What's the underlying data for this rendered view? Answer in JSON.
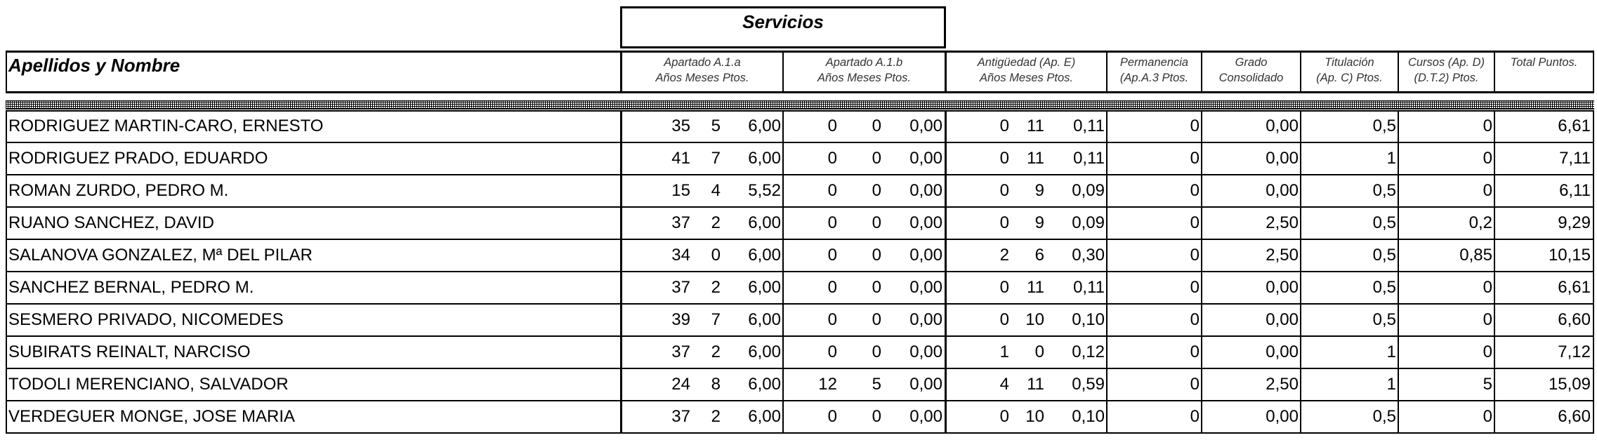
{
  "header": {
    "servicios": "Servicios",
    "name_col": "Apellidos y Nombre",
    "col_a1a": [
      "Apartado A.1.a",
      "Años Meses Ptos."
    ],
    "col_a1b": [
      "Apartado A.1.b",
      "Años Meses Ptos."
    ],
    "col_antig": [
      "Antigüedad (Ap. E)",
      "Años Meses Ptos."
    ],
    "col_perm": [
      "Permanencia",
      "(Ap.A.3 Ptos."
    ],
    "col_grado": [
      "Grado",
      "Consolidado"
    ],
    "col_titul": [
      "Titulación",
      "(Ap. C) Ptos."
    ],
    "col_cursos": [
      "Cursos (Ap. D)",
      "(D.T.2) Ptos."
    ],
    "col_total": [
      "Total Puntos."
    ]
  },
  "rows": [
    {
      "name": "RODRIGUEZ MARTIN-CARO, ERNESTO",
      "a1a": [
        "35",
        "5",
        "6,00"
      ],
      "a1b": [
        "0",
        "0",
        "0,00"
      ],
      "antig": [
        "0",
        "11",
        "0,11"
      ],
      "perm": "0",
      "grado": "0,00",
      "titul": "0,5",
      "cursos": "0",
      "total": "6,61"
    },
    {
      "name": "RODRIGUEZ PRADO, EDUARDO",
      "a1a": [
        "41",
        "7",
        "6,00"
      ],
      "a1b": [
        "0",
        "0",
        "0,00"
      ],
      "antig": [
        "0",
        "11",
        "0,11"
      ],
      "perm": "0",
      "grado": "0,00",
      "titul": "1",
      "cursos": "0",
      "total": "7,11"
    },
    {
      "name": "ROMAN ZURDO, PEDRO M.",
      "a1a": [
        "15",
        "4",
        "5,52"
      ],
      "a1b": [
        "0",
        "0",
        "0,00"
      ],
      "antig": [
        "0",
        "9",
        "0,09"
      ],
      "perm": "0",
      "grado": "0,00",
      "titul": "0,5",
      "cursos": "0",
      "total": "6,11"
    },
    {
      "name": "RUANO SANCHEZ, DAVID",
      "a1a": [
        "37",
        "2",
        "6,00"
      ],
      "a1b": [
        "0",
        "0",
        "0,00"
      ],
      "antig": [
        "0",
        "9",
        "0,09"
      ],
      "perm": "0",
      "grado": "2,50",
      "titul": "0,5",
      "cursos": "0,2",
      "total": "9,29"
    },
    {
      "name": "SALANOVA GONZALEZ, Mª DEL PILAR",
      "a1a": [
        "34",
        "0",
        "6,00"
      ],
      "a1b": [
        "0",
        "0",
        "0,00"
      ],
      "antig": [
        "2",
        "6",
        "0,30"
      ],
      "perm": "0",
      "grado": "2,50",
      "titul": "0,5",
      "cursos": "0,85",
      "total": "10,15"
    },
    {
      "name": "SANCHEZ BERNAL, PEDRO M.",
      "a1a": [
        "37",
        "2",
        "6,00"
      ],
      "a1b": [
        "0",
        "0",
        "0,00"
      ],
      "antig": [
        "0",
        "11",
        "0,11"
      ],
      "perm": "0",
      "grado": "0,00",
      "titul": "0,5",
      "cursos": "0",
      "total": "6,61"
    },
    {
      "name": "SESMERO PRIVADO, NICOMEDES",
      "a1a": [
        "39",
        "7",
        "6,00"
      ],
      "a1b": [
        "0",
        "0",
        "0,00"
      ],
      "antig": [
        "0",
        "10",
        "0,10"
      ],
      "perm": "0",
      "grado": "0,00",
      "titul": "0,5",
      "cursos": "0",
      "total": "6,60"
    },
    {
      "name": "SUBIRATS REINALT, NARCISO",
      "a1a": [
        "37",
        "2",
        "6,00"
      ],
      "a1b": [
        "0",
        "0",
        "0,00"
      ],
      "antig": [
        "1",
        "0",
        "0,12"
      ],
      "perm": "0",
      "grado": "0,00",
      "titul": "1",
      "cursos": "0",
      "total": "7,12"
    },
    {
      "name": "TODOLI MERENCIANO, SALVADOR",
      "a1a": [
        "24",
        "8",
        "6,00"
      ],
      "a1b": [
        "12",
        "5",
        "0,00"
      ],
      "antig": [
        "4",
        "11",
        "0,59"
      ],
      "perm": "0",
      "grado": "2,50",
      "titul": "1",
      "cursos": "5",
      "total": "15,09"
    },
    {
      "name": "VERDEGUER MONGE, JOSE MARIA",
      "a1a": [
        "37",
        "2",
        "6,00"
      ],
      "a1b": [
        "0",
        "0",
        "0,00"
      ],
      "antig": [
        "0",
        "10",
        "0,10"
      ],
      "perm": "0",
      "grado": "0,00",
      "titul": "0,5",
      "cursos": "0",
      "total": "6,60"
    }
  ]
}
